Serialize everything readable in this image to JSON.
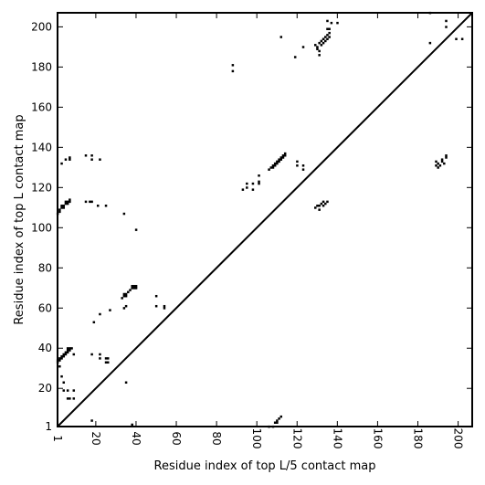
{
  "chart_data": {
    "type": "scatter",
    "title": "",
    "xlabel": "Residue index of top L/5 contact map",
    "ylabel": "Residue index of top L contact map",
    "xlim": [
      1,
      207
    ],
    "ylim": [
      1,
      207
    ],
    "x_ticks": [
      1,
      20,
      40,
      60,
      80,
      100,
      120,
      140,
      160,
      180,
      200
    ],
    "y_ticks": [
      1,
      20,
      40,
      60,
      80,
      100,
      120,
      140,
      160,
      180,
      200
    ],
    "grid": false,
    "marker": "square",
    "marker_color": "#000000",
    "diagonal_line": true,
    "series": [
      {
        "points": [
          [
            1,
            107
          ],
          [
            2,
            108
          ],
          [
            2,
            109
          ],
          [
            3,
            110
          ],
          [
            3,
            111
          ],
          [
            4,
            110
          ],
          [
            4,
            111
          ],
          [
            5,
            112
          ],
          [
            5,
            113
          ],
          [
            6,
            112
          ],
          [
            6,
            113
          ],
          [
            7,
            114
          ],
          [
            7,
            113
          ],
          [
            5,
            134
          ],
          [
            7,
            135
          ],
          [
            7,
            134
          ],
          [
            3,
            132
          ],
          [
            15,
            113
          ],
          [
            17,
            113
          ],
          [
            18,
            113
          ],
          [
            21,
            111
          ],
          [
            25,
            111
          ],
          [
            15,
            136
          ],
          [
            18,
            136
          ],
          [
            18,
            134
          ],
          [
            22,
            134
          ],
          [
            34,
            107
          ],
          [
            40,
            99
          ],
          [
            1,
            33
          ],
          [
            1,
            34
          ],
          [
            2,
            34
          ],
          [
            2,
            35
          ],
          [
            3,
            35
          ],
          [
            3,
            36
          ],
          [
            4,
            36
          ],
          [
            4,
            37
          ],
          [
            5,
            37
          ],
          [
            5,
            38
          ],
          [
            6,
            38
          ],
          [
            6,
            39
          ],
          [
            7,
            39
          ],
          [
            8,
            40
          ],
          [
            7,
            40
          ],
          [
            6,
            40
          ],
          [
            2,
            31
          ],
          [
            3,
            26
          ],
          [
            4,
            23
          ],
          [
            4,
            19
          ],
          [
            6,
            19
          ],
          [
            9,
            19
          ],
          [
            6,
            15
          ],
          [
            7,
            15
          ],
          [
            9,
            15
          ],
          [
            9,
            37
          ],
          [
            18,
            37
          ],
          [
            22,
            37
          ],
          [
            22,
            35
          ],
          [
            25,
            35
          ],
          [
            26,
            35
          ],
          [
            25,
            33
          ],
          [
            26,
            33
          ],
          [
            33,
            65
          ],
          [
            34,
            66
          ],
          [
            34,
            67
          ],
          [
            35,
            66
          ],
          [
            35,
            67
          ],
          [
            36,
            68
          ],
          [
            37,
            69
          ],
          [
            38,
            70
          ],
          [
            38,
            71
          ],
          [
            39,
            70
          ],
          [
            39,
            71
          ],
          [
            40,
            71
          ],
          [
            40,
            70
          ],
          [
            34,
            60
          ],
          [
            35,
            61
          ],
          [
            27,
            59
          ],
          [
            22,
            57
          ],
          [
            19,
            53
          ],
          [
            50,
            66
          ],
          [
            50,
            61
          ],
          [
            54,
            61
          ],
          [
            54,
            60
          ],
          [
            35,
            23
          ],
          [
            38,
            2
          ],
          [
            18,
            4
          ],
          [
            88,
            181
          ],
          [
            88,
            178
          ],
          [
            93,
            119
          ],
          [
            95,
            120
          ],
          [
            95,
            122
          ],
          [
            98,
            119
          ],
          [
            98,
            122
          ],
          [
            101,
            122
          ],
          [
            101,
            123
          ],
          [
            101,
            126
          ],
          [
            106,
            129
          ],
          [
            107,
            130
          ],
          [
            108,
            130
          ],
          [
            108,
            131
          ],
          [
            109,
            131
          ],
          [
            109,
            132
          ],
          [
            110,
            132
          ],
          [
            110,
            133
          ],
          [
            111,
            133
          ],
          [
            111,
            134
          ],
          [
            112,
            134
          ],
          [
            112,
            135
          ],
          [
            113,
            135
          ],
          [
            113,
            136
          ],
          [
            114,
            136
          ],
          [
            114,
            137
          ],
          [
            120,
            133
          ],
          [
            120,
            131
          ],
          [
            123,
            131
          ],
          [
            123,
            129
          ],
          [
            129,
            110
          ],
          [
            130,
            111
          ],
          [
            131,
            109
          ],
          [
            131,
            111
          ],
          [
            132,
            112
          ],
          [
            133,
            111
          ],
          [
            133,
            113
          ],
          [
            134,
            112
          ],
          [
            135,
            113
          ],
          [
            129,
            191
          ],
          [
            130,
            190
          ],
          [
            130,
            189
          ],
          [
            131,
            192
          ],
          [
            131,
            188
          ],
          [
            132,
            193
          ],
          [
            132,
            191
          ],
          [
            133,
            194
          ],
          [
            133,
            192
          ],
          [
            134,
            195
          ],
          [
            134,
            193
          ],
          [
            135,
            196
          ],
          [
            135,
            194
          ],
          [
            136,
            197
          ],
          [
            136,
            195
          ],
          [
            135,
            199
          ],
          [
            136,
            199
          ],
          [
            112,
            195
          ],
          [
            119,
            185
          ],
          [
            123,
            190
          ],
          [
            131,
            186
          ],
          [
            135,
            203
          ],
          [
            137,
            202
          ],
          [
            140,
            202
          ],
          [
            106,
            1
          ],
          [
            108,
            1
          ],
          [
            109,
            3
          ],
          [
            110,
            3
          ],
          [
            110,
            4
          ],
          [
            111,
            5
          ],
          [
            112,
            6
          ],
          [
            186,
            207
          ],
          [
            186,
            192
          ],
          [
            194,
            200
          ],
          [
            194,
            203
          ],
          [
            199,
            194
          ],
          [
            202,
            194
          ],
          [
            189,
            133
          ],
          [
            189,
            131
          ],
          [
            190,
            132
          ],
          [
            190,
            130
          ],
          [
            191,
            131
          ],
          [
            192,
            134
          ],
          [
            192,
            133
          ],
          [
            193,
            132
          ],
          [
            194,
            135
          ],
          [
            194,
            136
          ]
        ]
      }
    ]
  }
}
